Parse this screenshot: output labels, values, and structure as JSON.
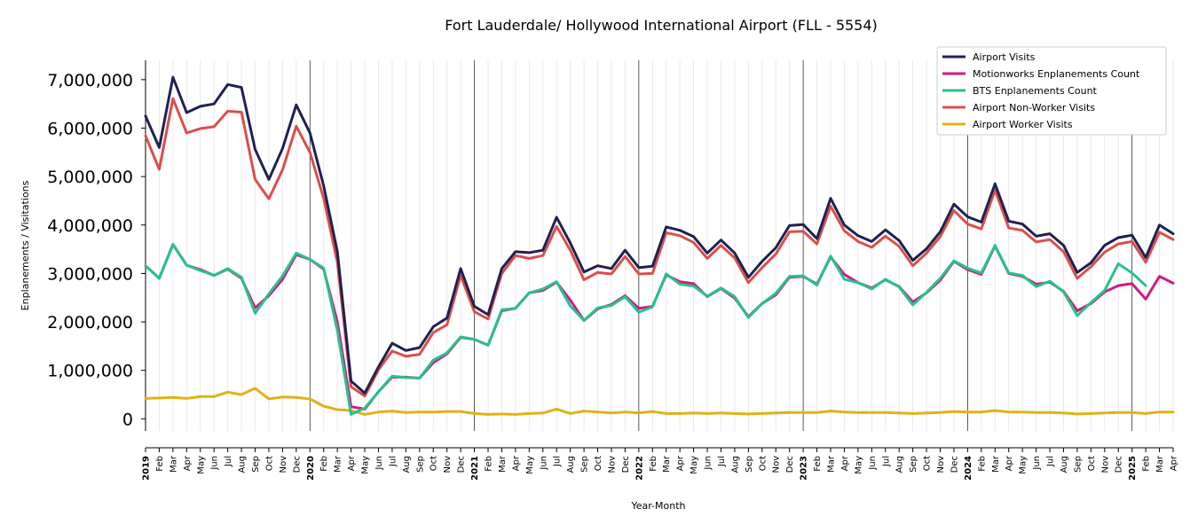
{
  "chart_data": {
    "type": "line",
    "title": "Fort Lauderdale/ Hollywood International Airport (FLL - 5554)",
    "xlabel": "Year-Month",
    "ylabel": "Enplanements / Visitations",
    "ylim": [
      -250000,
      7400000
    ],
    "yticks": [
      0,
      1000000,
      2000000,
      3000000,
      4000000,
      5000000,
      6000000,
      7000000
    ],
    "ytick_labels": [
      "0",
      "1,000,000",
      "2,000,000",
      "3,000,000",
      "4,000,000",
      "5,000,000",
      "6,000,000",
      "7,000,000"
    ],
    "grid": "vertical monthly gridlines; year gridlines darker",
    "legend_position": "top-right",
    "x_labels": [
      "2019",
      "Feb",
      "Mar",
      "Apr",
      "May",
      "Jun",
      "Jul",
      "Aug",
      "Sep",
      "Oct",
      "Nov",
      "Dec",
      "2020",
      "Feb",
      "Mar",
      "Apr",
      "May",
      "Jun",
      "Jul",
      "Aug",
      "Sep",
      "Oct",
      "Nov",
      "Dec",
      "2021",
      "Feb",
      "Mar",
      "Apr",
      "May",
      "Jun",
      "Jul",
      "Aug",
      "Sep",
      "Oct",
      "Nov",
      "Dec",
      "2022",
      "Feb",
      "Mar",
      "Apr",
      "May",
      "Jun",
      "Jul",
      "Aug",
      "Sep",
      "Oct",
      "Nov",
      "Dec",
      "2023",
      "Feb",
      "Mar",
      "Apr",
      "May",
      "Jun",
      "Jul",
      "Aug",
      "Sep",
      "Oct",
      "Nov",
      "Dec",
      "2024",
      "Feb",
      "Mar",
      "Apr",
      "May",
      "Jun",
      "Jul",
      "Aug",
      "Sep",
      "Oct",
      "Nov",
      "Dec",
      "2025",
      "Feb",
      "Mar",
      "Apr"
    ],
    "x": [
      "2019-01",
      "2019-02",
      "2019-03",
      "2019-04",
      "2019-05",
      "2019-06",
      "2019-07",
      "2019-08",
      "2019-09",
      "2019-10",
      "2019-11",
      "2019-12",
      "2020-01",
      "2020-02",
      "2020-03",
      "2020-04",
      "2020-05",
      "2020-06",
      "2020-07",
      "2020-08",
      "2020-09",
      "2020-10",
      "2020-11",
      "2020-12",
      "2021-01",
      "2021-02",
      "2021-03",
      "2021-04",
      "2021-05",
      "2021-06",
      "2021-07",
      "2021-08",
      "2021-09",
      "2021-10",
      "2021-11",
      "2021-12",
      "2022-01",
      "2022-02",
      "2022-03",
      "2022-04",
      "2022-05",
      "2022-06",
      "2022-07",
      "2022-08",
      "2022-09",
      "2022-10",
      "2022-11",
      "2022-12",
      "2023-01",
      "2023-02",
      "2023-03",
      "2023-04",
      "2023-05",
      "2023-06",
      "2023-07",
      "2023-08",
      "2023-09",
      "2023-10",
      "2023-11",
      "2023-12",
      "2024-01",
      "2024-02",
      "2024-03",
      "2024-04",
      "2024-05",
      "2024-06",
      "2024-07",
      "2024-08",
      "2024-09",
      "2024-10",
      "2024-11",
      "2024-12",
      "2025-01",
      "2025-02",
      "2025-03",
      "2025-04"
    ],
    "series": [
      {
        "name": "Airport Visits",
        "color": "#1f2152",
        "values": [
          6250000,
          5600000,
          7050000,
          6320000,
          6450000,
          6500000,
          6900000,
          6840000,
          5560000,
          4940000,
          5580000,
          6480000,
          5900000,
          4810000,
          3450000,
          780000,
          530000,
          1070000,
          1560000,
          1410000,
          1470000,
          1900000,
          2080000,
          3100000,
          2320000,
          2150000,
          3100000,
          3450000,
          3430000,
          3480000,
          4160000,
          3630000,
          3030000,
          3160000,
          3100000,
          3480000,
          3120000,
          3150000,
          3960000,
          3890000,
          3760000,
          3420000,
          3690000,
          3420000,
          2920000,
          3250000,
          3530000,
          3990000,
          4010000,
          3720000,
          4550000,
          4000000,
          3780000,
          3660000,
          3900000,
          3680000,
          3270000,
          3510000,
          3860000,
          4430000,
          4170000,
          4060000,
          4850000,
          4080000,
          4020000,
          3770000,
          3820000,
          3580000,
          3020000,
          3220000,
          3580000,
          3740000,
          3790000,
          3330000,
          4000000,
          3820000
        ]
      },
      {
        "name": "Motionworks Enplanements Count",
        "color": "#d01a86",
        "values": [
          3160000,
          2900000,
          3600000,
          3170000,
          3080000,
          2960000,
          3090000,
          2900000,
          2290000,
          2540000,
          2880000,
          3390000,
          3290000,
          3090000,
          2000000,
          250000,
          200000,
          560000,
          860000,
          860000,
          840000,
          1160000,
          1340000,
          1680000,
          1640000,
          1520000,
          2230000,
          2280000,
          2600000,
          2650000,
          2820000,
          2450000,
          2030000,
          2270000,
          2360000,
          2540000,
          2280000,
          2320000,
          2970000,
          2830000,
          2790000,
          2520000,
          2690000,
          2490000,
          2110000,
          2380000,
          2560000,
          2920000,
          2940000,
          2780000,
          3340000,
          2980000,
          2810000,
          2700000,
          2870000,
          2730000,
          2410000,
          2600000,
          2860000,
          3250000,
          3080000,
          2980000,
          3570000,
          3000000,
          2940000,
          2780000,
          2820000,
          2630000,
          2230000,
          2380000,
          2620000,
          2750000,
          2790000,
          2470000,
          2940000,
          2800000
        ]
      },
      {
        "name": "BTS Enplanements Count",
        "color": "#26c28b",
        "values": [
          3160000,
          2900000,
          3600000,
          3170000,
          3060000,
          2960000,
          3100000,
          2920000,
          2180000,
          2580000,
          2950000,
          3420000,
          3290000,
          3110000,
          1820000,
          90000,
          220000,
          560000,
          880000,
          850000,
          840000,
          1210000,
          1360000,
          1690000,
          1640000,
          1520000,
          2250000,
          2280000,
          2600000,
          2680000,
          2830000,
          2330000,
          2030000,
          2290000,
          2340000,
          2520000,
          2200000,
          2310000,
          2990000,
          2780000,
          2740000,
          2530000,
          2700000,
          2520000,
          2090000,
          2380000,
          2590000,
          2940000,
          2950000,
          2760000,
          3360000,
          2880000,
          2810000,
          2680000,
          2880000,
          2720000,
          2350000,
          2610000,
          2900000,
          3260000,
          3110000,
          3010000,
          3580000,
          3010000,
          2960000,
          2730000,
          2840000,
          2620000,
          2130000,
          2400000,
          2650000,
          3200000,
          3010000,
          2750000,
          null,
          null
        ]
      },
      {
        "name": "Airport Non-Worker Visits",
        "color": "#d94f4b",
        "values": [
          5840000,
          5150000,
          6610000,
          5900000,
          5990000,
          6030000,
          6350000,
          6330000,
          4940000,
          4540000,
          5140000,
          6040000,
          5500000,
          4550000,
          3230000,
          660000,
          470000,
          1010000,
          1400000,
          1290000,
          1330000,
          1780000,
          1940000,
          2960000,
          2210000,
          2060000,
          3000000,
          3370000,
          3310000,
          3370000,
          3970000,
          3480000,
          2870000,
          3020000,
          2990000,
          3350000,
          2990000,
          3000000,
          3840000,
          3780000,
          3640000,
          3310000,
          3580000,
          3320000,
          2810000,
          3120000,
          3400000,
          3860000,
          3870000,
          3610000,
          4390000,
          3880000,
          3660000,
          3540000,
          3770000,
          3560000,
          3160000,
          3420000,
          3760000,
          4300000,
          4020000,
          3920000,
          4720000,
          3940000,
          3890000,
          3650000,
          3700000,
          3450000,
          2900000,
          3140000,
          3440000,
          3610000,
          3660000,
          3230000,
          3850000,
          3700000
        ]
      },
      {
        "name": "Airport Worker Visits",
        "color": "#e2b116",
        "values": [
          420000,
          430000,
          440000,
          420000,
          460000,
          460000,
          550000,
          500000,
          630000,
          410000,
          450000,
          440000,
          410000,
          260000,
          190000,
          170000,
          90000,
          140000,
          160000,
          130000,
          140000,
          140000,
          150000,
          150000,
          110000,
          90000,
          100000,
          90000,
          110000,
          120000,
          200000,
          110000,
          160000,
          140000,
          120000,
          140000,
          120000,
          150000,
          110000,
          110000,
          120000,
          110000,
          120000,
          110000,
          100000,
          110000,
          120000,
          130000,
          130000,
          130000,
          160000,
          140000,
          130000,
          130000,
          130000,
          120000,
          110000,
          120000,
          130000,
          150000,
          140000,
          140000,
          170000,
          140000,
          140000,
          130000,
          130000,
          120000,
          100000,
          110000,
          120000,
          130000,
          130000,
          110000,
          140000,
          140000
        ]
      }
    ]
  }
}
